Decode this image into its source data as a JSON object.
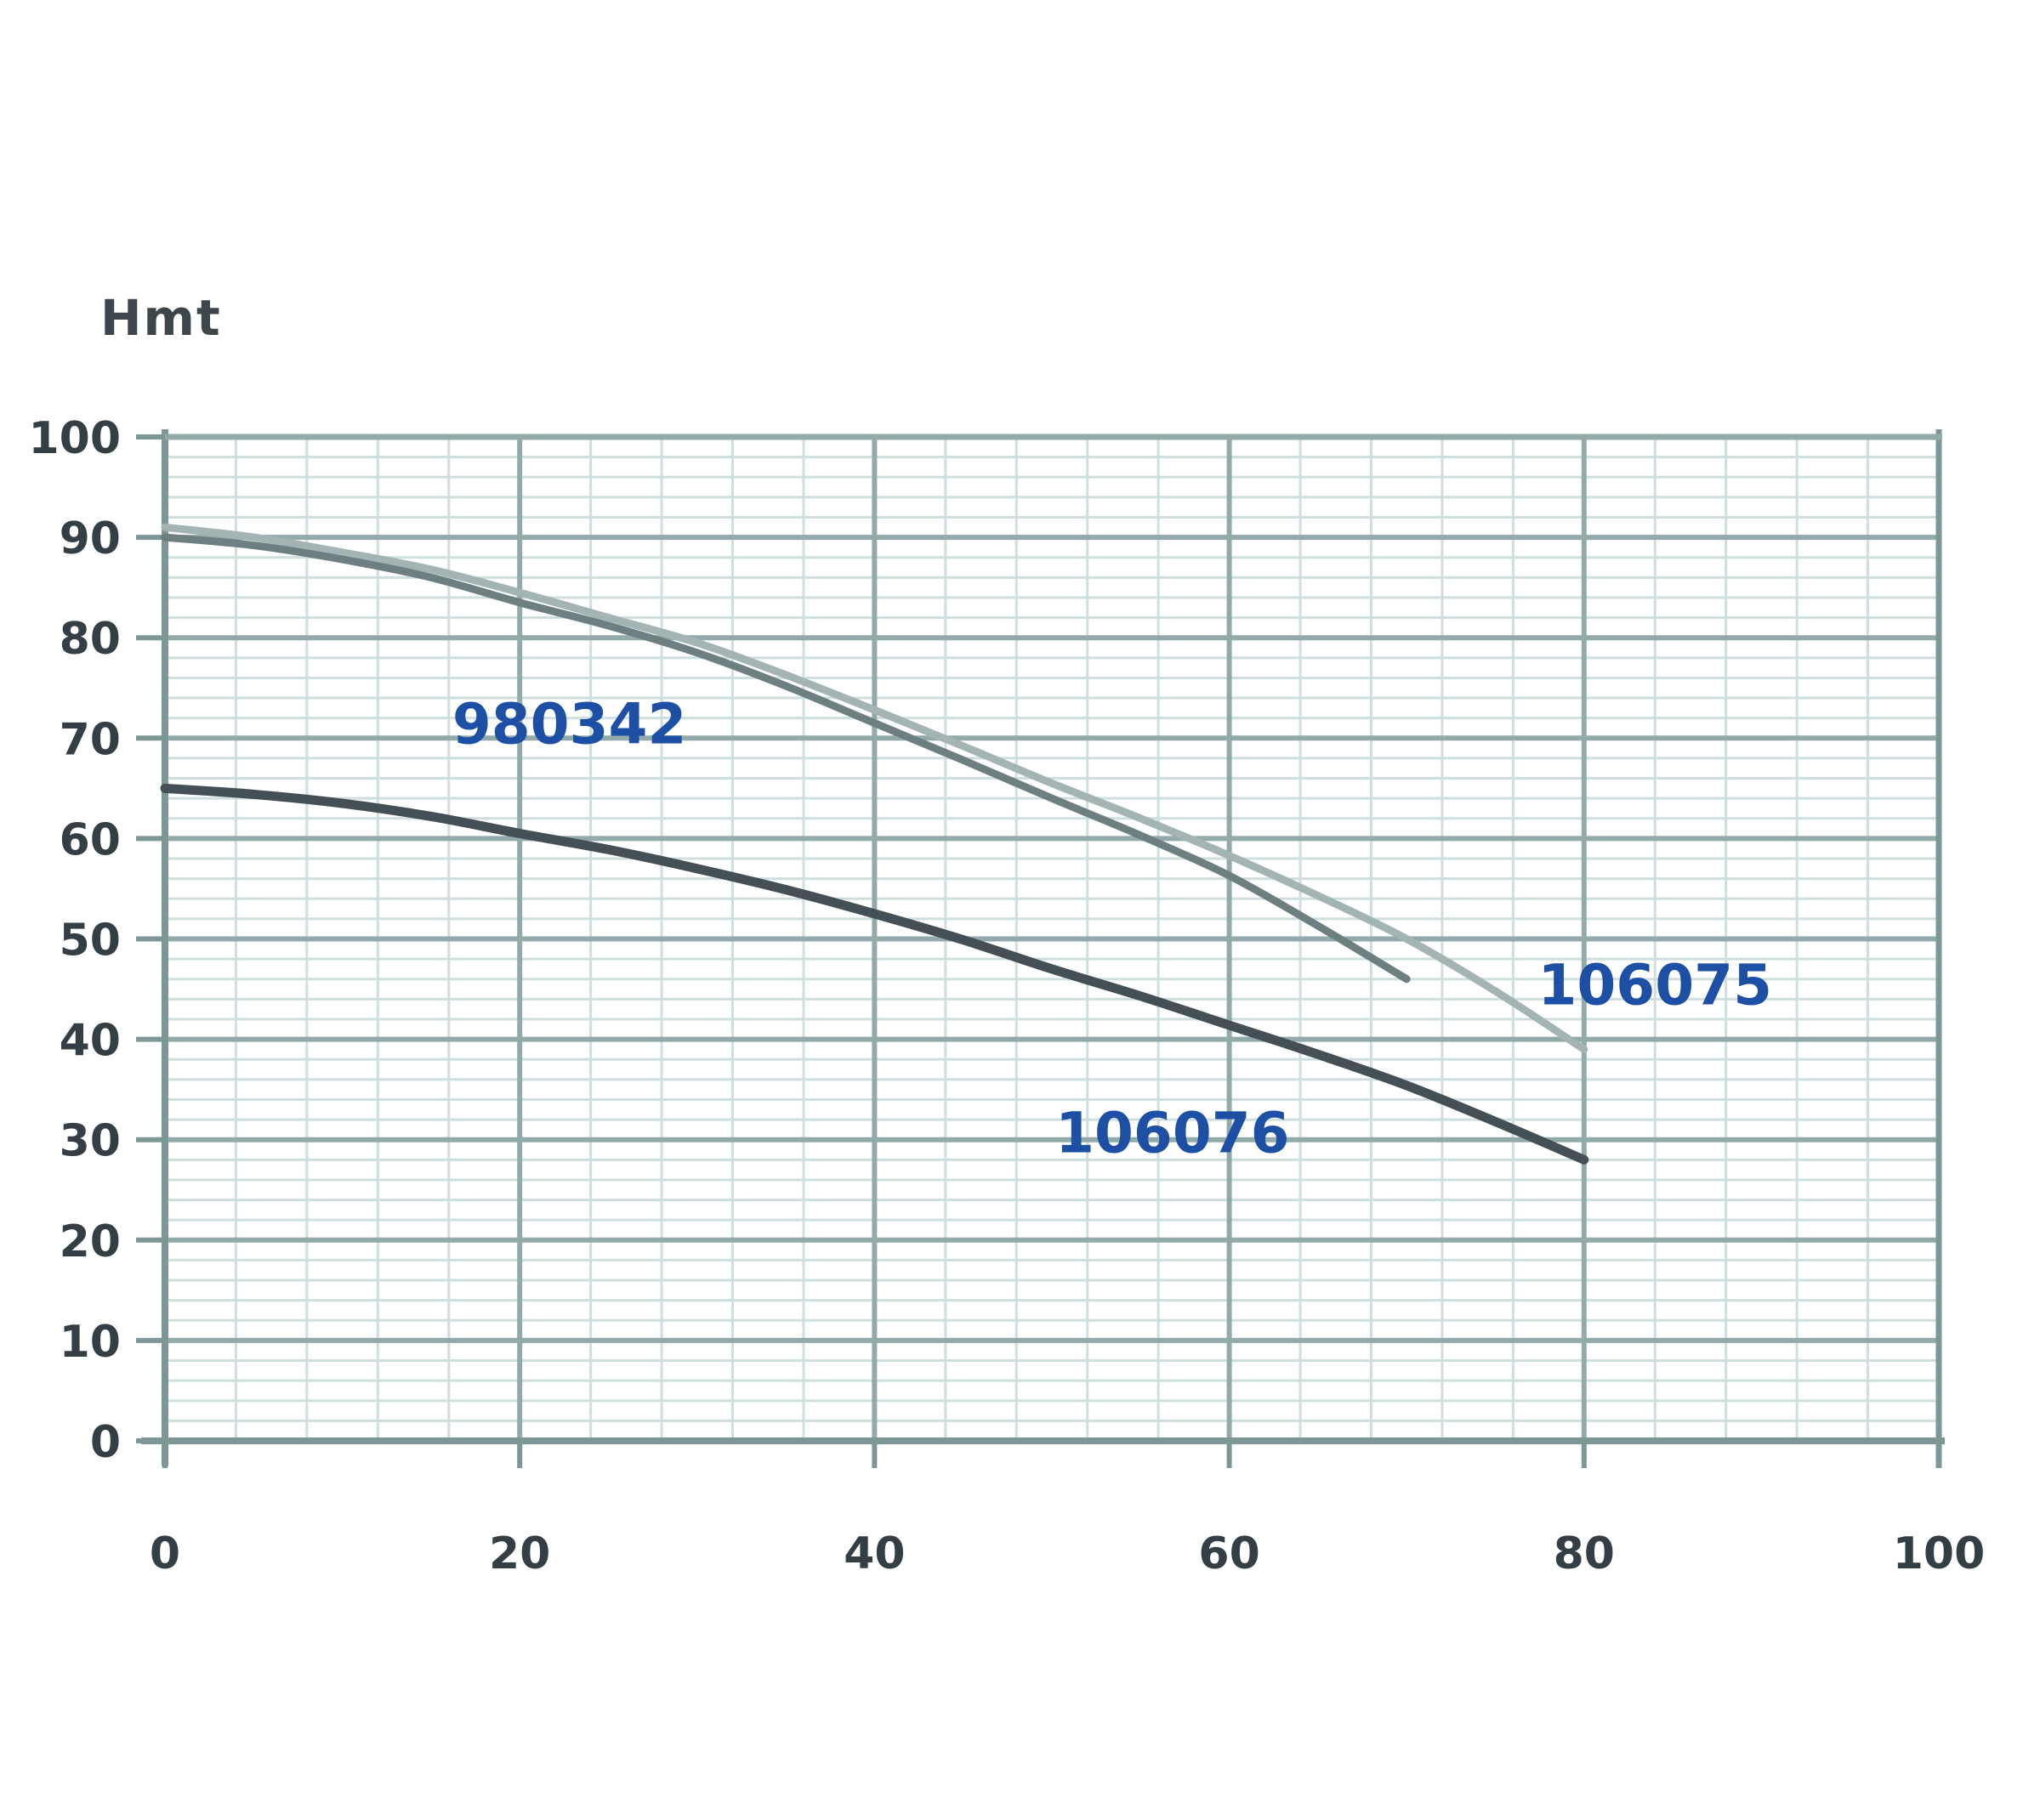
{
  "title": "Hmt",
  "colors": {
    "background": "#ffffff",
    "grid_minor": "#cfdede",
    "grid_major": "#93aaaa",
    "axis": "#7d9797",
    "tick_label": "#343e45",
    "title": "#3d464b",
    "annotation_blue": "#1d4fa4"
  },
  "chart_data": {
    "type": "line",
    "title": "Hmt",
    "xlabel": "",
    "ylabel": "Hmt",
    "xlim": [
      0,
      100
    ],
    "ylim": [
      0,
      100
    ],
    "x_ticks": [
      0,
      20,
      40,
      60,
      80,
      100
    ],
    "y_ticks": [
      0,
      10,
      20,
      30,
      40,
      50,
      60,
      70,
      80,
      90,
      100
    ],
    "grid": {
      "minor_x_step": 4,
      "minor_y_step": 2,
      "major_x_step": 20,
      "major_y_step": 10,
      "grid_on": true
    },
    "legend": "none",
    "series": [
      {
        "name": "106075",
        "color": "#a4b4b4",
        "width": 9,
        "points": [
          [
            0,
            91
          ],
          [
            5,
            90
          ],
          [
            10,
            88.5
          ],
          [
            15,
            86.8
          ],
          [
            20,
            84.5
          ],
          [
            25,
            82
          ],
          [
            30,
            79.5
          ],
          [
            35,
            76.3
          ],
          [
            40,
            72.8
          ],
          [
            45,
            69.2
          ],
          [
            50,
            65.5
          ],
          [
            55,
            62
          ],
          [
            60,
            58.3
          ],
          [
            65,
            54.3
          ],
          [
            70,
            50
          ],
          [
            75,
            44.8
          ],
          [
            80,
            39
          ]
        ]
      },
      {
        "name": "980342",
        "color": "#6d7f81",
        "width": 9,
        "points": [
          [
            0,
            90
          ],
          [
            5,
            89.2
          ],
          [
            10,
            87.8
          ],
          [
            15,
            86
          ],
          [
            20,
            83.5
          ],
          [
            25,
            81.2
          ],
          [
            30,
            78.5
          ],
          [
            35,
            75.2
          ],
          [
            40,
            71.5
          ],
          [
            45,
            67.8
          ],
          [
            50,
            64
          ],
          [
            55,
            60.3
          ],
          [
            60,
            56.3
          ],
          [
            65,
            51.3
          ],
          [
            70,
            46
          ]
        ]
      },
      {
        "name": "106076",
        "color": "#454f56",
        "width": 11,
        "points": [
          [
            0,
            65
          ],
          [
            5,
            64.4
          ],
          [
            10,
            63.5
          ],
          [
            15,
            62.2
          ],
          [
            20,
            60.5
          ],
          [
            25,
            58.9
          ],
          [
            30,
            57
          ],
          [
            35,
            54.9
          ],
          [
            40,
            52.5
          ],
          [
            45,
            49.9
          ],
          [
            50,
            47
          ],
          [
            55,
            44.3
          ],
          [
            60,
            41.4
          ],
          [
            65,
            38.5
          ],
          [
            70,
            35.4
          ],
          [
            75,
            31.8
          ],
          [
            80,
            28
          ]
        ]
      }
    ],
    "annotations": [
      {
        "text": "980342",
        "x": 22.8,
        "y": 71.5,
        "color": "#1d4fa4"
      },
      {
        "text": "106075",
        "x": 84.0,
        "y": 45.5,
        "color": "#1d4fa4"
      },
      {
        "text": "106076",
        "x": 56.8,
        "y": 30.8,
        "color": "#1d4fa4"
      }
    ]
  }
}
